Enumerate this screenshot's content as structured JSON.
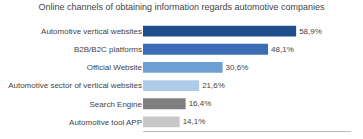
{
  "chart_data": {
    "type": "bar",
    "orientation": "horizontal",
    "title": "Online channels of obtaining information regards automotive companies",
    "categories": [
      "Automotive vertical websites",
      "B2B/B2C platforms",
      "Official Website",
      "Automotive sector of vertical websites",
      "Search Engine",
      "Automotive tool APP"
    ],
    "values": [
      58.9,
      48.1,
      30.6,
      21.6,
      16.4,
      14.1
    ],
    "value_labels": [
      "58,9%",
      "48,1%",
      "30,6%",
      "21,6%",
      "16,4%",
      "14,1%"
    ],
    "colors": [
      "#1f4e8c",
      "#3a6db5",
      "#6d9fd4",
      "#aecce8",
      "#7f7f7f",
      "#c8c8c8"
    ],
    "xlim": [
      0,
      80
    ],
    "data_labels": true,
    "tick_labels": "y",
    "grid": false
  }
}
